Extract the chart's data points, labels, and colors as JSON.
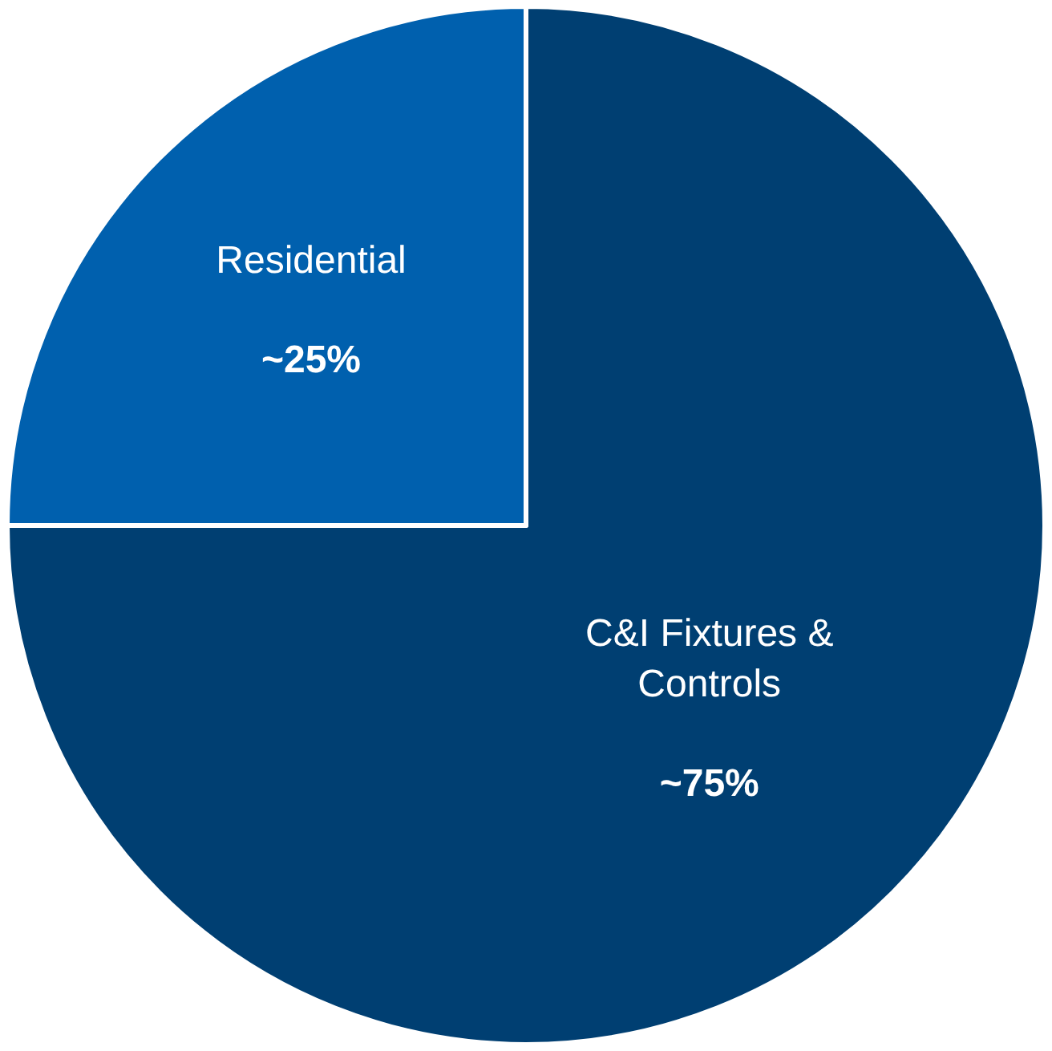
{
  "chart_data": {
    "type": "pie",
    "categories": [
      "C&I Fixtures & Controls",
      "Residential"
    ],
    "values": [
      75,
      25
    ],
    "colors": [
      "#003f72",
      "#0060ae"
    ],
    "value_labels": [
      "~75%",
      "~25%"
    ],
    "legend": false
  }
}
